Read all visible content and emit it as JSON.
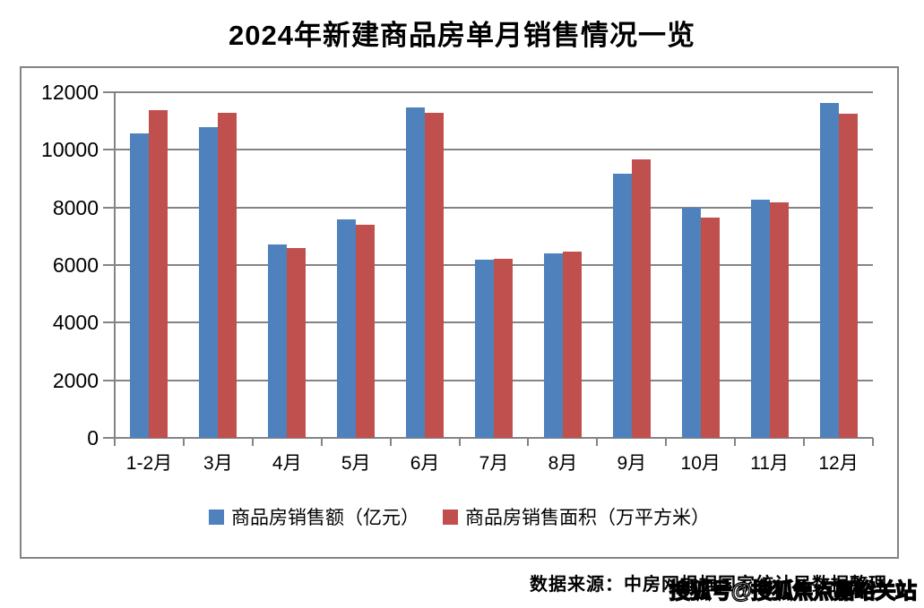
{
  "title": "2024年新建商品房单月销售情况一览",
  "colors": {
    "series_sales": "#4F81BD",
    "series_area": "#C0504D",
    "grid": "#848484",
    "border": "#848484",
    "text": "#000000",
    "watermark_fill": "#ffffff",
    "watermark_outline": "#000000"
  },
  "chart_data": {
    "type": "bar",
    "title": "2024年新建商品房单月销售情况一览",
    "categories": [
      "1-2月",
      "3月",
      "4月",
      "5月",
      "6月",
      "7月",
      "8月",
      "9月",
      "10月",
      "11月",
      "12月"
    ],
    "series": [
      {
        "name": "商品房销售额（亿元）",
        "color": "#4F81BD",
        "values": [
          10566,
          10789,
          6712,
          7598,
          11468,
          6197,
          6393,
          9157,
          7975,
          8270,
          11625
        ]
      },
      {
        "name": "商品房销售面积（万平方米）",
        "color": "#C0504D",
        "values": [
          11369,
          11299,
          6584,
          7390,
          11274,
          6233,
          6453,
          9682,
          7646,
          8188,
          11267
        ]
      }
    ],
    "xlabel": "",
    "ylabel": "",
    "ylim": [
      0,
      12000
    ],
    "yticks": [
      0,
      2000,
      4000,
      6000,
      8000,
      10000,
      12000
    ],
    "grid": true,
    "legend_position": "bottom"
  },
  "footer": {
    "source": "数据来源：中房网根据国家统计局数据整理",
    "watermark": "搜狐号@搜狐焦点嘉峪关站"
  }
}
